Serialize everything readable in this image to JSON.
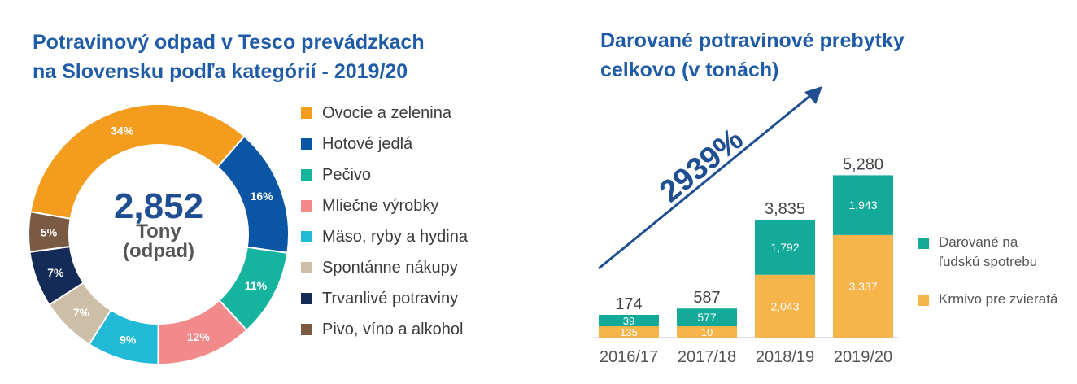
{
  "left_title": [
    "Potravinový odpad v Tesco prevádzkach",
    "na Slovensku podľa kategórií  - 2019/20"
  ],
  "right_title": [
    "Darované potravinové prebytky",
    "celkovo (v tonách)"
  ],
  "colors": {
    "title": "#1f5ba6",
    "donated_people": "#13aa9a",
    "animal_feed": "#f6b54a",
    "arrow": "#1f4f92"
  },
  "chart_data": [
    {
      "type": "pie",
      "center_value": "2,852",
      "center_label": [
        "Tony",
        "(odpad)"
      ],
      "slices": [
        {
          "label": "Ovocie a zelenina",
          "value": 34,
          "value_label": "34%",
          "color": "#f39c1d"
        },
        {
          "label": "Hotové jedlá",
          "value": 16,
          "value_label": "16%",
          "color": "#0b56a4"
        },
        {
          "label": "Pečivo",
          "value": 11,
          "value_label": "11%",
          "color": "#16b39f"
        },
        {
          "label": "Mliečne výrobky",
          "value": 12,
          "value_label": "12%",
          "color": "#f2898a"
        },
        {
          "label": "Mäso, ryby a hydina",
          "value": 9,
          "value_label": "9%",
          "color": "#21bad6"
        },
        {
          "label": "Spontánne nákupy",
          "value": 7,
          "value_label": "7%",
          "color": "#cdbea8"
        },
        {
          "label": "Trvanlivé potraviny",
          "value": 7,
          "value_label": "7%",
          "color": "#142a57"
        },
        {
          "label": "Pivo, víno a alkohol",
          "value": 5,
          "value_label": "5%",
          "color": "#7b5a44"
        }
      ]
    },
    {
      "type": "bar",
      "stacked": true,
      "categories": [
        "2016/17",
        "2017/18",
        "2018/19",
        "2019/20"
      ],
      "totals": [
        "174",
        "587",
        "3,835",
        "5,280"
      ],
      "series": [
        {
          "name": "Krmivo pre zvieratá",
          "values": [
            135,
            10,
            2043,
            3337
          ],
          "labels": [
            "135",
            "10",
            "2,043",
            "3,337"
          ],
          "color": "#f6b54a"
        },
        {
          "name": "Darované na ľudskú spotrebu",
          "values": [
            39,
            577,
            1792,
            1943
          ],
          "labels": [
            "39",
            "577",
            "1,792",
            "1,943"
          ],
          "color": "#13aa9a"
        }
      ],
      "annotation": "2939%"
    }
  ],
  "legend_right": [
    {
      "label": "Darované na ľudskú spotrebu",
      "color": "#13aa9a"
    },
    {
      "label": "Krmivo pre zvieratá",
      "color": "#f6b54a"
    }
  ]
}
